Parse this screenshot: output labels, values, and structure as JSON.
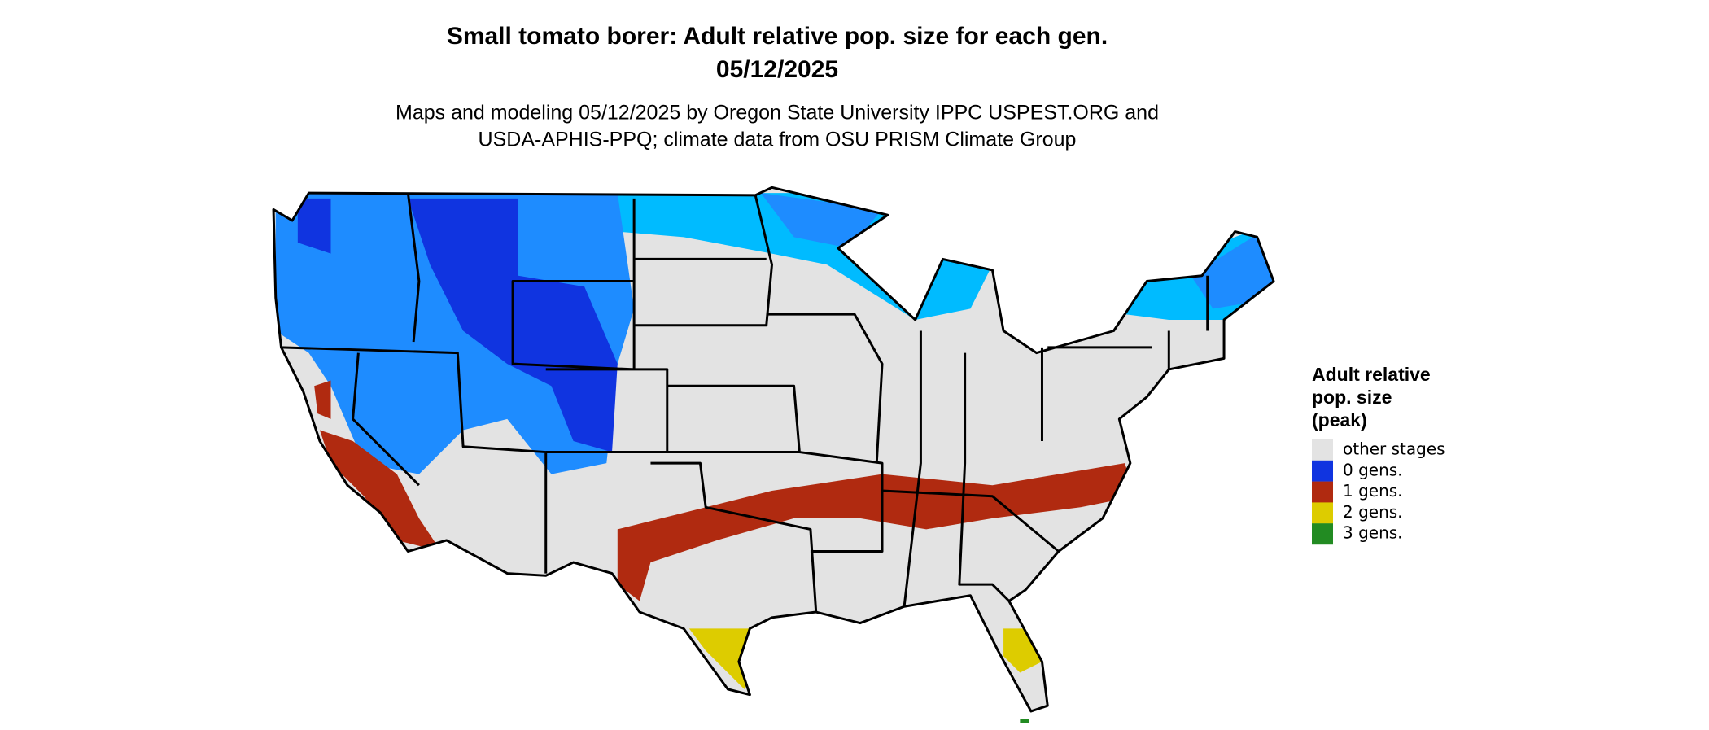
{
  "header": {
    "title": [
      "Small tomato borer: Adult relative pop. size for each gen.",
      "05/12/2025"
    ],
    "subtitle": [
      "Maps and modeling 05/12/2025 by Oregon State University IPPC USPEST.ORG and",
      "USDA-APHIS-PPQ; climate data from OSU PRISM Climate Group"
    ]
  },
  "legend": {
    "title": [
      "Adult relative",
      "pop. size",
      "(peak)"
    ],
    "items": [
      {
        "label": "other stages",
        "color": "#e3e3e3"
      },
      {
        "label": "0 gens.",
        "color": "#1034e0"
      },
      {
        "label": "1 gens.",
        "color": "#b02a10"
      },
      {
        "label": "2 gens.",
        "color": "#ddcc00"
      },
      {
        "label": "3 gens.",
        "color": "#228b22"
      }
    ]
  }
}
